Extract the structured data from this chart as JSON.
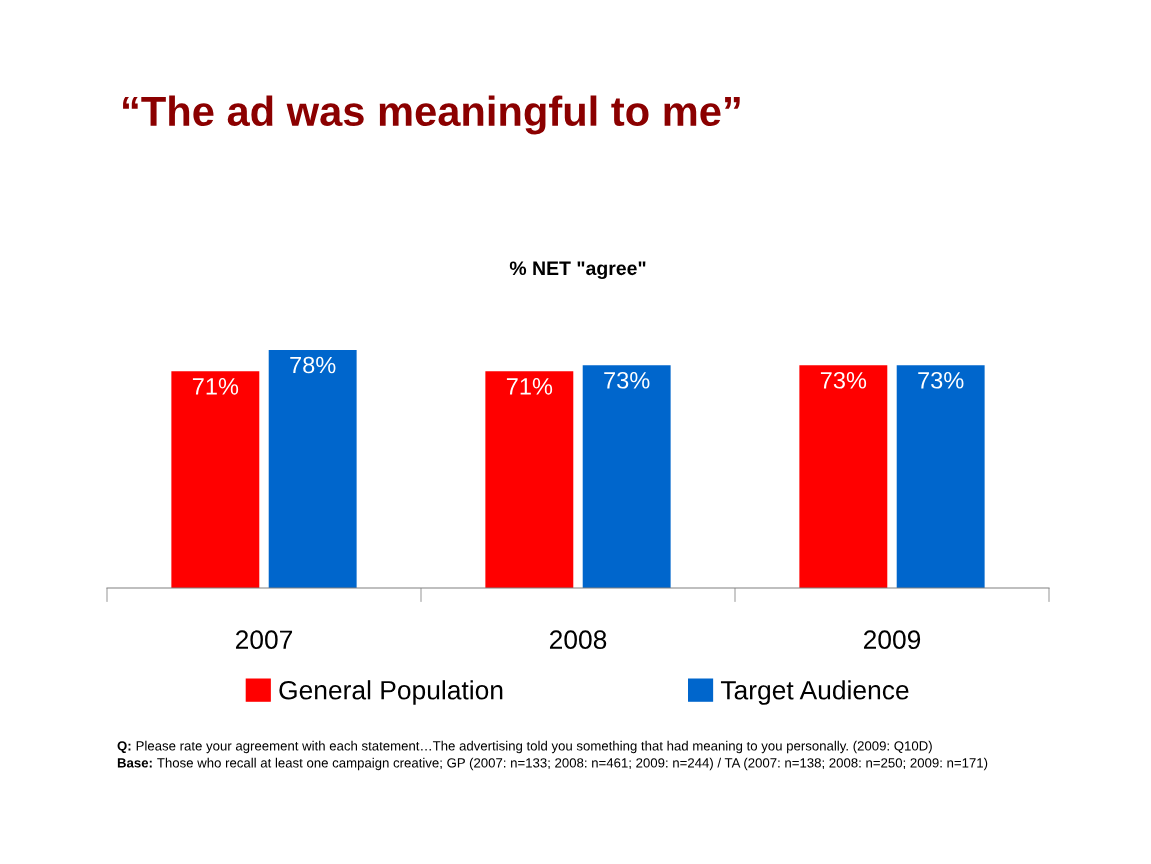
{
  "chart_data": {
    "type": "bar",
    "title": "“The ad was meaningful to me”",
    "subtitle": "% NET \"agree\"",
    "categories": [
      "2007",
      "2008",
      "2009"
    ],
    "series": [
      {
        "name": "General Population",
        "color": "#ff0000",
        "values": [
          71,
          71,
          73
        ],
        "value_labels": [
          "71%",
          "71%",
          "73%"
        ]
      },
      {
        "name": "Target Audience",
        "color": "#0066cc",
        "values": [
          78,
          73,
          73
        ],
        "value_labels": [
          "78%",
          "73%",
          "73%"
        ]
      }
    ],
    "legend": "bottom",
    "grid": false,
    "annotations": [
      "Q: Please rate your agreement with each statement…The advertising told you something that had meaning to you personally. (2009: Q10D)",
      "Base: Those who recall at least one campaign creative; GP (2007: n=133; 2008: n=461; 2009: n=244) / TA (2007: n=138; 2008: n=250; 2009: n=171)"
    ]
  }
}
